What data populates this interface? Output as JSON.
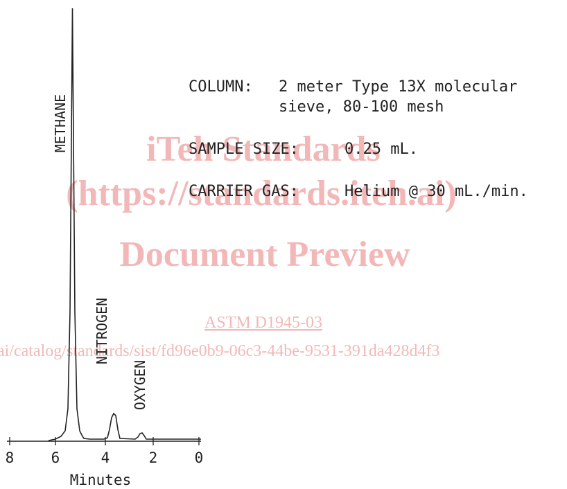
{
  "watermark": {
    "title": "iTeh Standards",
    "url": "(https://standards.iteh.ai)",
    "subtitle": "Document Preview",
    "standard": "ASTM D1945-03",
    "link": "ai/catalog/standards/sist/fd96e0b9-06c3-44be-9531-391da428d4f3"
  },
  "figure": {
    "peaks": [
      "METHANE",
      "NITROGEN",
      "OXYGEN"
    ],
    "x_axis": {
      "label": "Minutes",
      "ticks": [
        "8",
        "6",
        "4",
        "2",
        "0"
      ]
    },
    "conditions": [
      {
        "label": "COLUMN:",
        "lines": [
          "2 meter Type 13X molecular",
          "sieve, 80-100 mesh"
        ]
      },
      {
        "label": "SAMPLE SIZE:",
        "lines": [
          "0.25 mL."
        ]
      },
      {
        "label": "CARRIER GAS:",
        "lines": [
          "Helium @ 30 mL./min."
        ]
      }
    ]
  }
}
